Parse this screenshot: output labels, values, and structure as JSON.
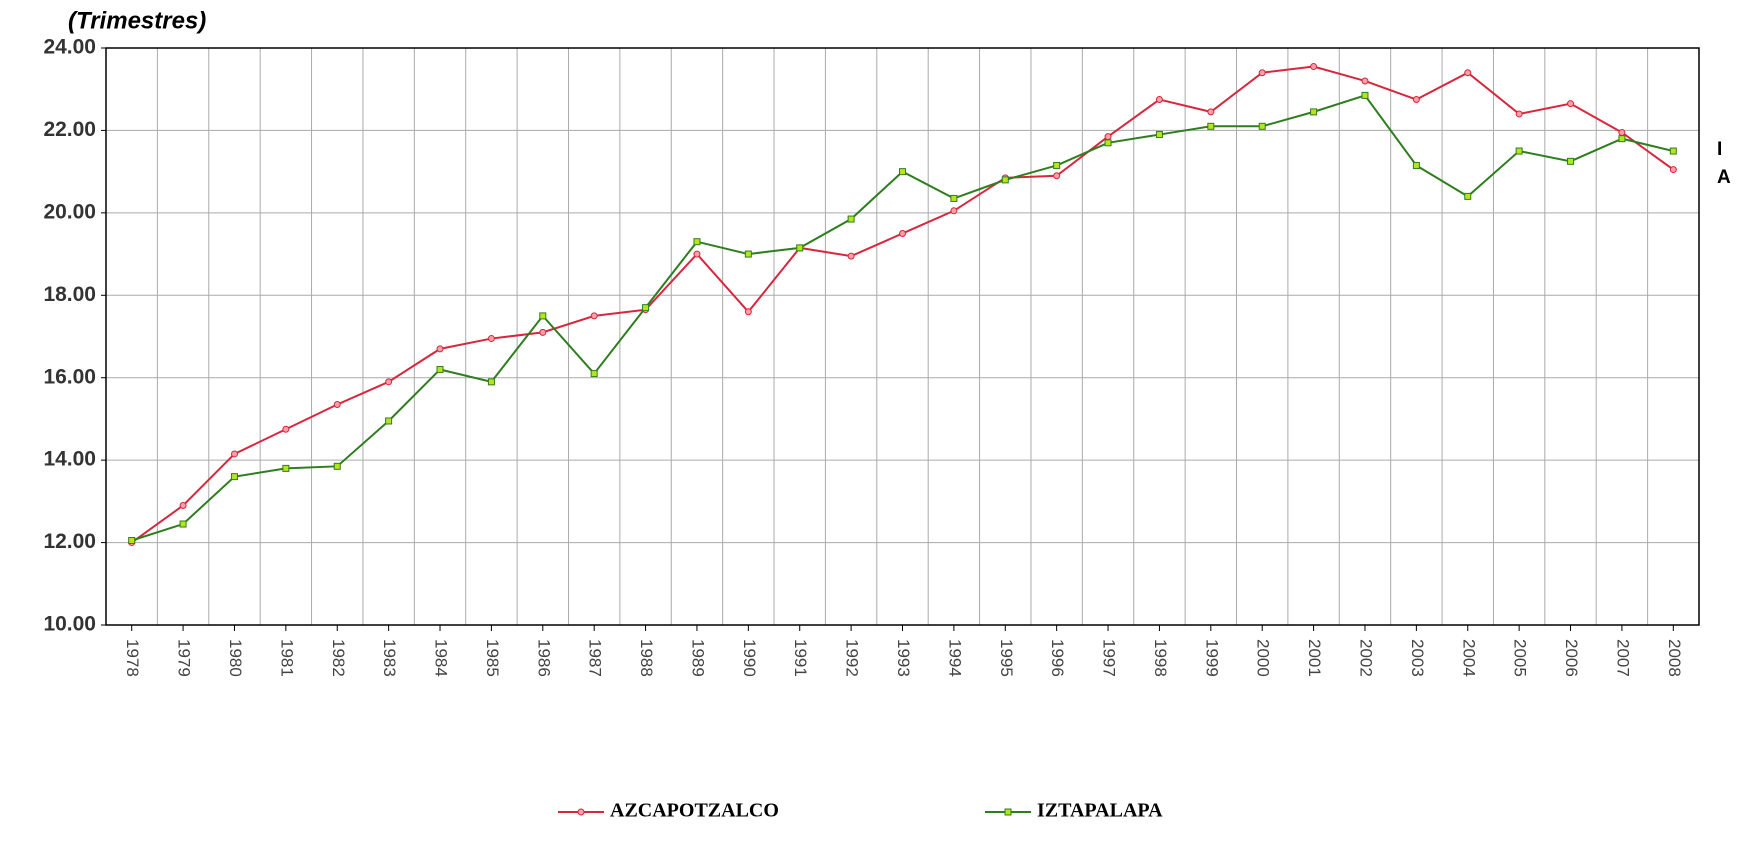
{
  "chart_data": {
    "type": "line",
    "subtitle": "(Trimestres)",
    "side_labels": [
      "I",
      "A"
    ],
    "categories": [
      "1978",
      "1979",
      "1980",
      "1981",
      "1982",
      "1983",
      "1984",
      "1985",
      "1986",
      "1987",
      "1988",
      "1989",
      "1990",
      "1991",
      "1992",
      "1993",
      "1994",
      "1995",
      "1996",
      "1997",
      "1998",
      "1999",
      "2000",
      "2001",
      "2002",
      "2003",
      "2004",
      "2005",
      "2006",
      "2007",
      "2008"
    ],
    "series": [
      {
        "name": "AZCAPOTZALCO",
        "color": "#d7263d",
        "values": [
          12.0,
          12.9,
          14.15,
          14.75,
          15.35,
          15.9,
          16.7,
          16.95,
          17.1,
          17.5,
          17.65,
          19.0,
          17.6,
          19.15,
          18.95,
          19.5,
          20.05,
          20.85,
          20.9,
          21.85,
          22.75,
          22.45,
          23.4,
          23.55,
          23.2,
          22.75,
          23.4,
          22.4,
          22.65,
          21.95,
          21.05
        ]
      },
      {
        "name": "IZTAPALAPA",
        "color": "#2e7d1e",
        "values": [
          12.05,
          12.45,
          13.6,
          13.8,
          13.85,
          14.95,
          16.2,
          15.9,
          17.5,
          16.1,
          17.7,
          19.3,
          19.0,
          19.15,
          19.85,
          21.0,
          20.35,
          20.8,
          21.15,
          21.7,
          21.9,
          22.1,
          22.1,
          22.45,
          22.85,
          21.15,
          20.4,
          21.5,
          21.25,
          21.8,
          21.5
        ]
      }
    ],
    "ylim": [
      10,
      24
    ],
    "yticks": [
      {
        "value": 10,
        "label": "10.00"
      },
      {
        "value": 12,
        "label": "12.00"
      },
      {
        "value": 14,
        "label": "14.00"
      },
      {
        "value": 16,
        "label": "16.00"
      },
      {
        "value": 18,
        "label": "18.00"
      },
      {
        "value": 20,
        "label": "20.00"
      },
      {
        "value": 22,
        "label": "22.00"
      },
      {
        "value": 24,
        "label": "24.00"
      }
    ],
    "grid": true
  }
}
